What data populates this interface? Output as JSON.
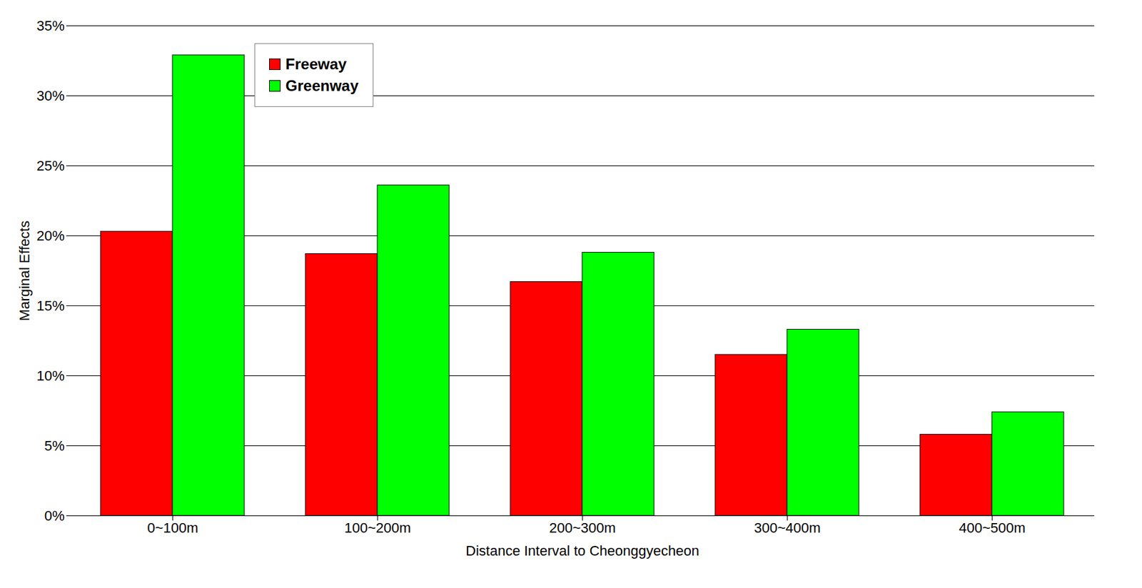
{
  "chart_data": {
    "type": "bar",
    "x_label": "Distance Interval to Cheonggyecheon",
    "y_label": "Marginal Effects",
    "categories": [
      "0~100m",
      "100~200m",
      "200~300m",
      "300~400m",
      "400~500m"
    ],
    "series": [
      {
        "name": "Freeway",
        "color": "#ff0000",
        "values": [
          20.3,
          18.7,
          16.7,
          11.5,
          5.8
        ]
      },
      {
        "name": "Greenway",
        "color": "#00ff00",
        "values": [
          32.9,
          23.6,
          18.8,
          13.3,
          7.4
        ]
      }
    ],
    "ylim": [
      0,
      35
    ],
    "yticks": [
      {
        "value": 0,
        "label": "0%"
      },
      {
        "value": 5,
        "label": "5%"
      },
      {
        "value": 10,
        "label": "10%"
      },
      {
        "value": 15,
        "label": "15%"
      },
      {
        "value": 20,
        "label": "20%"
      },
      {
        "value": 25,
        "label": "25%"
      },
      {
        "value": 30,
        "label": "30%"
      },
      {
        "value": 35,
        "label": "35%"
      }
    ],
    "grid": true,
    "legend": "upper left"
  }
}
